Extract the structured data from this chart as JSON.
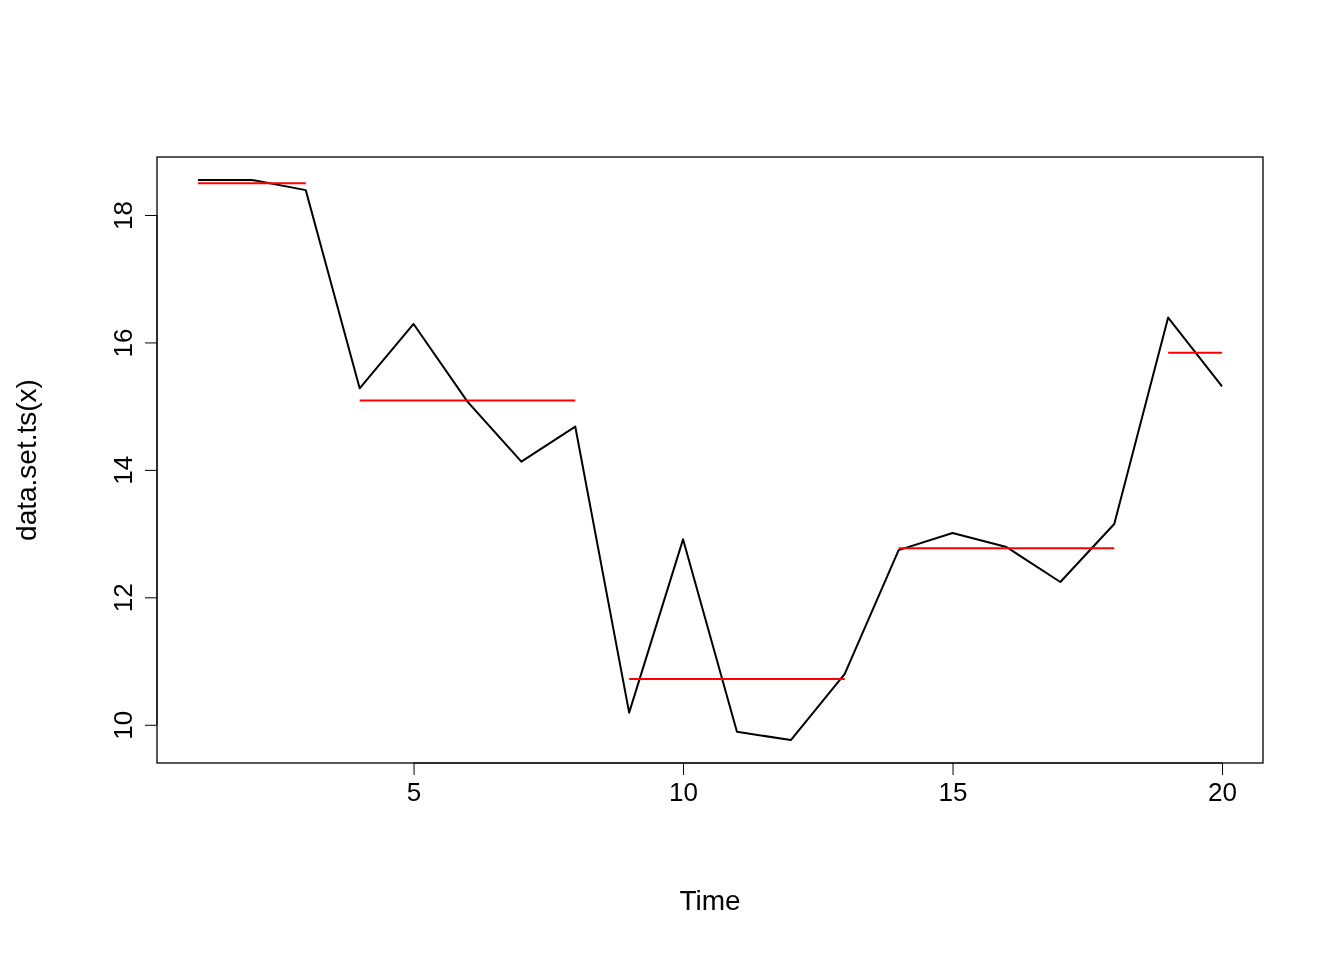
{
  "chart_data": {
    "type": "line",
    "xlabel": "Time",
    "ylabel": "data.set.ts(x)",
    "x": [
      1,
      2,
      3,
      4,
      5,
      6,
      7,
      8,
      9,
      10,
      11,
      12,
      13,
      14,
      15,
      16,
      17,
      18,
      19,
      20
    ],
    "xlim": [
      0.24,
      20.76
    ],
    "ylim": [
      9.4,
      18.91
    ],
    "xticks": [
      5,
      10,
      15,
      20
    ],
    "yticks": [
      10,
      12,
      14,
      16,
      18
    ],
    "grid": false,
    "series": [
      {
        "color": "#000000",
        "values": [
          18.55,
          18.55,
          18.39,
          15.28,
          16.29,
          15.07,
          14.13,
          14.68,
          10.19,
          12.91,
          9.89,
          9.76,
          10.8,
          12.74,
          13.01,
          12.79,
          12.24,
          13.15,
          16.39,
          15.31
        ]
      },
      {
        "color": "#ff0000",
        "x": [
          1,
          3
        ],
        "values": [
          18.5,
          18.5
        ]
      },
      {
        "color": "#ff0000",
        "x": [
          4,
          8
        ],
        "values": [
          15.09,
          15.09
        ]
      },
      {
        "color": "#ff0000",
        "x": [
          9,
          13
        ],
        "values": [
          10.72,
          10.72
        ]
      },
      {
        "color": "#ff0000",
        "x": [
          14,
          18
        ],
        "values": [
          12.77,
          12.77
        ]
      },
      {
        "color": "#ff0000",
        "x": [
          19,
          20
        ],
        "values": [
          15.84,
          15.84
        ]
      }
    ]
  }
}
